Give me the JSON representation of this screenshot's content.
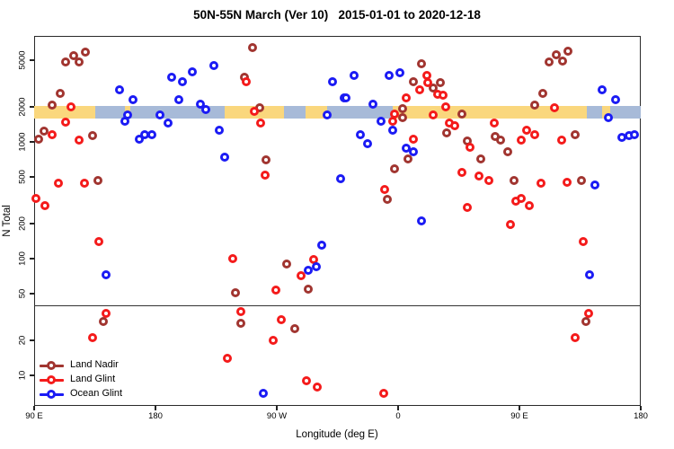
{
  "title": "50N-55N March (Ver 10)   2015-01-01 to 2020-12-18",
  "legend": {
    "items": [
      "Land Nadir",
      "Land Glint",
      "Ocean Glint"
    ]
  },
  "chart_data": {
    "type": "scatter",
    "title": "50N-55N March (Ver 10)   2015-01-01 to 2020-12-18",
    "xlabel": "Longitude (deg E)",
    "ylabel": "N Total",
    "x_axis": {
      "range": [
        90,
        540
      ],
      "ticks": [
        {
          "pos": 90,
          "label": "90 E"
        },
        {
          "pos": 180,
          "label": "180"
        },
        {
          "pos": 270,
          "label": "90 W"
        },
        {
          "pos": 360,
          "label": "0"
        },
        {
          "pos": 450,
          "label": "90 E"
        },
        {
          "pos": 540,
          "label": "180"
        }
      ]
    },
    "y_axis": {
      "scale": "log",
      "range": [
        6,
        7500
      ],
      "ticks": [
        10,
        20,
        50,
        100,
        200,
        500,
        1000,
        2000,
        5000
      ]
    },
    "threshold_line_y": 40,
    "surface_band": {
      "y_center_value": 1900,
      "land_color": "#FAD77D",
      "ocean_color": "#A7BAD8",
      "segments": [
        {
          "from": 90,
          "to": 135,
          "surface": "land"
        },
        {
          "from": 135,
          "to": 231,
          "surface": "ocean"
        },
        {
          "from": 157,
          "to": 161,
          "surface": "land"
        },
        {
          "from": 231,
          "to": 275,
          "surface": "land"
        },
        {
          "from": 275,
          "to": 291,
          "surface": "ocean"
        },
        {
          "from": 291,
          "to": 307,
          "surface": "land"
        },
        {
          "from": 307,
          "to": 356,
          "surface": "ocean"
        },
        {
          "from": 356,
          "to": 500,
          "surface": "land"
        },
        {
          "from": 500,
          "to": 540,
          "surface": "ocean"
        },
        {
          "from": 511,
          "to": 517,
          "surface": "land"
        }
      ]
    },
    "series": [
      {
        "name": "Land Nadir",
        "color": "#A13530",
        "points": [
          [
            113,
            4800
          ],
          [
            119,
            5500
          ],
          [
            123,
            4800
          ],
          [
            128,
            5900
          ],
          [
            109,
            2600
          ],
          [
            103,
            2050
          ],
          [
            97,
            1240
          ],
          [
            93,
            1050
          ],
          [
            133,
            1130
          ],
          [
            137,
            470
          ],
          [
            252,
            6400
          ],
          [
            246,
            3600
          ],
          [
            257,
            1960
          ],
          [
            262,
            700
          ],
          [
            377,
            4700
          ],
          [
            371,
            3300
          ],
          [
            386,
            2900
          ],
          [
            391,
            3200
          ],
          [
            363,
            1930
          ],
          [
            363,
            1600
          ],
          [
            407,
            1730
          ],
          [
            396,
            1200
          ],
          [
            411,
            1020
          ],
          [
            367,
            710
          ],
          [
            421,
            710
          ],
          [
            357,
            590
          ],
          [
            352,
            320
          ],
          [
            472,
            4800
          ],
          [
            477,
            5600
          ],
          [
            482,
            4900
          ],
          [
            486,
            6000
          ],
          [
            467,
            2600
          ],
          [
            461,
            2070
          ],
          [
            432,
            1110
          ],
          [
            436,
            1030
          ],
          [
            441,
            830
          ],
          [
            491,
            1150
          ],
          [
            446,
            470
          ],
          [
            496,
            470
          ],
          [
            141,
            29
          ],
          [
            277,
            90
          ],
          [
            293,
            55
          ],
          [
            239,
            51
          ],
          [
            243,
            28
          ],
          [
            283,
            25
          ],
          [
            499,
            29
          ]
        ]
      },
      {
        "name": "Land Glint",
        "color": "#F41B1B",
        "points": [
          [
            117,
            2000
          ],
          [
            113,
            1480
          ],
          [
            103,
            1160
          ],
          [
            123,
            1030
          ],
          [
            108,
            440
          ],
          [
            127,
            440
          ],
          [
            91,
            330
          ],
          [
            98,
            285
          ],
          [
            247,
            3300
          ],
          [
            253,
            1830
          ],
          [
            258,
            1450
          ],
          [
            261,
            520
          ],
          [
            381,
            3700
          ],
          [
            376,
            2800
          ],
          [
            382,
            3200
          ],
          [
            389,
            2550
          ],
          [
            393,
            2510
          ],
          [
            366,
            2400
          ],
          [
            357,
            1730
          ],
          [
            356,
            1500
          ],
          [
            386,
            1700
          ],
          [
            395,
            2000
          ],
          [
            398,
            1450
          ],
          [
            402,
            1370
          ],
          [
            371,
            1050
          ],
          [
            413,
            900
          ],
          [
            407,
            550
          ],
          [
            420,
            510
          ],
          [
            427,
            470
          ],
          [
            350,
            390
          ],
          [
            411,
            275
          ],
          [
            476,
            1950
          ],
          [
            431,
            1450
          ],
          [
            455,
            1260
          ],
          [
            461,
            1150
          ],
          [
            451,
            1030
          ],
          [
            481,
            1030
          ],
          [
            466,
            440
          ],
          [
            485,
            450
          ],
          [
            447,
            310
          ],
          [
            451,
            330
          ],
          [
            457,
            285
          ],
          [
            443,
            195
          ],
          [
            138,
            140
          ],
          [
            143,
            34
          ],
          [
            133,
            21
          ],
          [
            237,
            100
          ],
          [
            288,
            71
          ],
          [
            297,
            98
          ],
          [
            269,
            54
          ],
          [
            243,
            35
          ],
          [
            273,
            30
          ],
          [
            267,
            20
          ],
          [
            233,
            14
          ],
          [
            292,
            9
          ],
          [
            300,
            8
          ],
          [
            349,
            7
          ],
          [
            497,
            140
          ],
          [
            501,
            34
          ],
          [
            491,
            21
          ]
        ]
      },
      {
        "name": "Ocean Glint",
        "color": "#1B1BF4",
        "points": [
          [
            153,
            2800
          ],
          [
            163,
            2300
          ],
          [
            159,
            1700
          ],
          [
            157,
            1500
          ],
          [
            183,
            1700
          ],
          [
            189,
            1450
          ],
          [
            192,
            3600
          ],
          [
            200,
            3300
          ],
          [
            197,
            2300
          ],
          [
            168,
            1050
          ],
          [
            172,
            1160
          ],
          [
            177,
            1160
          ],
          [
            223,
            4500
          ],
          [
            207,
            4000
          ],
          [
            311,
            3300
          ],
          [
            320,
            2400
          ],
          [
            213,
            2100
          ],
          [
            217,
            1900
          ],
          [
            307,
            1700
          ],
          [
            227,
            1250
          ],
          [
            231,
            740
          ],
          [
            317,
            480
          ],
          [
            327,
            3700
          ],
          [
            353,
            3700
          ],
          [
            361,
            3900
          ],
          [
            321,
            2400
          ],
          [
            341,
            2100
          ],
          [
            347,
            1500
          ],
          [
            356,
            1250
          ],
          [
            332,
            1160
          ],
          [
            337,
            970
          ],
          [
            366,
            880
          ],
          [
            371,
            820
          ],
          [
            377,
            210
          ],
          [
            511,
            2800
          ],
          [
            521,
            2300
          ],
          [
            516,
            1600
          ],
          [
            526,
            1100
          ],
          [
            531,
            1130
          ],
          [
            535,
            1160
          ],
          [
            506,
            430
          ],
          [
            143,
            73
          ],
          [
            303,
            130
          ],
          [
            293,
            79
          ],
          [
            299,
            85
          ],
          [
            260,
            7
          ],
          [
            502,
            73
          ]
        ]
      }
    ]
  }
}
